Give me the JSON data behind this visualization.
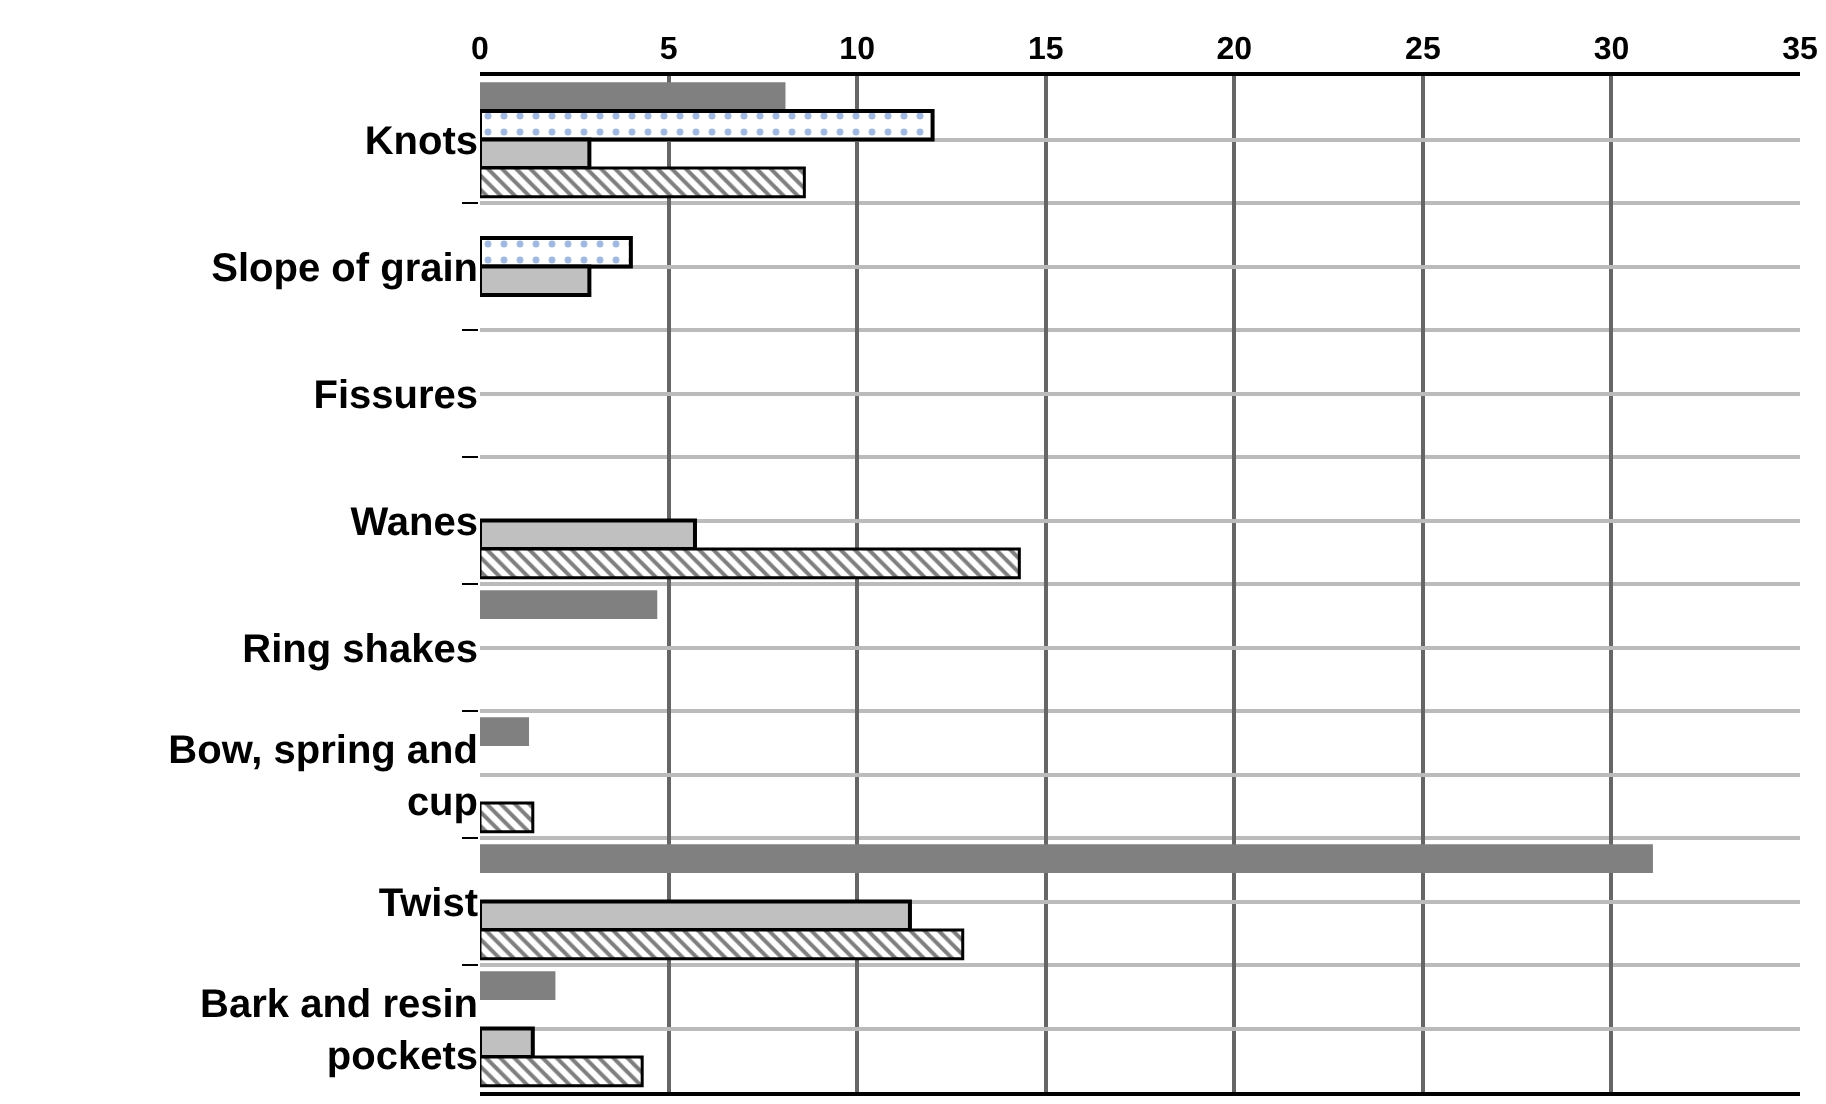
{
  "chart_data": {
    "type": "bar",
    "orientation": "horizontal",
    "categories": [
      "Knots",
      "Slope of grain",
      "Fissures",
      "Wanes",
      "Ring shakes",
      "Bow, spring and cup",
      "Twist",
      "Bark and resin pockets"
    ],
    "series": [
      {
        "color": "#808080",
        "values": [
          8.1,
          null,
          null,
          null,
          4.7,
          1.3,
          31.1,
          2.0
        ]
      },
      {
        "color": "#000000",
        "values": [
          12.0,
          4.0,
          null,
          null,
          null,
          null,
          null,
          null
        ]
      },
      {
        "color": "#c0c0c0",
        "values": [
          2.9,
          2.9,
          null,
          5.7,
          null,
          null,
          11.4,
          1.4
        ]
      },
      {
        "color": "#000000",
        "values": [
          8.6,
          null,
          null,
          14.3,
          null,
          1.4,
          12.8,
          4.3
        ]
      }
    ],
    "xlim": [
      0,
      35
    ],
    "xticks": [
      0,
      5,
      10,
      15,
      20,
      25,
      30,
      35
    ],
    "grid": true,
    "legend": false
  }
}
